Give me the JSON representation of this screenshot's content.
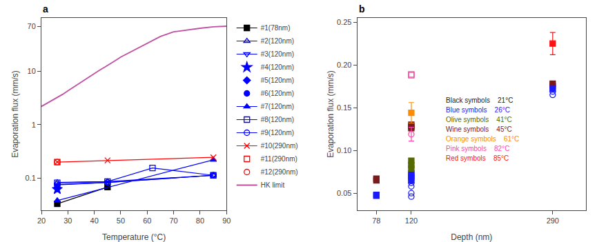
{
  "chart_data": [
    {
      "type": "line",
      "title": "a",
      "xlabel": "Temperature (°C)",
      "ylabel": "Evaporation flux (mm/s)",
      "log": "y",
      "grid": false,
      "legend": "right",
      "xlim": [
        20,
        90
      ],
      "xticks": [
        20,
        30,
        40,
        50,
        60,
        70,
        80,
        90
      ],
      "ylim": [
        0.025,
        100
      ],
      "yticks": [
        0.1,
        1,
        10,
        70
      ],
      "series": [
        {
          "name": "#1(78nm)",
          "color": "black",
          "marker": "square",
          "line_style": "solid",
          "x": [
            26,
            45
          ],
          "values": [
            0.033,
            0.068
          ]
        },
        {
          "name": "#2(120nm)",
          "color": "blue",
          "marker": "triangle-up-open",
          "line_style": "solid",
          "x": [
            26,
            45,
            85
          ],
          "values": [
            0.083,
            0.086,
            0.113
          ]
        },
        {
          "name": "#3(120nm)",
          "color": "blue",
          "marker": "triangle-down-open",
          "line_style": "solid",
          "x": [
            26,
            45,
            85
          ],
          "values": [
            0.075,
            0.083,
            0.113
          ]
        },
        {
          "name": "#4(120nm)",
          "color": "blue",
          "marker": "star",
          "line_style": "none",
          "x": [
            26
          ],
          "values": [
            0.062
          ]
        },
        {
          "name": "#5(120nm)",
          "color": "blue",
          "marker": "diamond",
          "line_style": "none",
          "x": [
            26
          ],
          "values": [
            0.065
          ]
        },
        {
          "name": "#6(120nm)",
          "color": "blue",
          "marker": "circle",
          "line_style": "none",
          "x": [
            26
          ],
          "values": [
            0.07
          ]
        },
        {
          "name": "#7(120nm)",
          "color": "blue",
          "marker": "triangle-up",
          "line_style": "solid",
          "x": [
            26,
            85
          ],
          "values": [
            0.038,
            0.22
          ]
        },
        {
          "name": "#8(120nm)",
          "color": "blue",
          "marker": "square-open",
          "line_style": "solid",
          "x": [
            26,
            45,
            62,
            85
          ],
          "values": [
            0.082,
            0.086,
            0.155,
            0.113
          ]
        },
        {
          "name": "#9(120nm)",
          "color": "blue",
          "marker": "circle-open",
          "line_style": "solid",
          "x": [
            26,
            45,
            85
          ],
          "values": [
            0.076,
            0.083,
            0.113
          ]
        },
        {
          "name": "#10(290nm)",
          "color": "red",
          "marker": "x-thin-open",
          "line_style": "solid",
          "x": [
            26,
            45,
            85
          ],
          "values": [
            0.2,
            0.215,
            0.245
          ]
        },
        {
          "name": "#11(290nm)",
          "color": "red",
          "marker": "square-open",
          "line_style": "none",
          "x": [
            26
          ],
          "values": [
            0.2
          ]
        },
        {
          "name": "#12(290nm)",
          "color": "red",
          "marker": "circle-open",
          "line_style": "none",
          "x": [
            26
          ],
          "values": [
            0.2
          ]
        },
        {
          "name": "HK limit",
          "color": "#C050A0",
          "marker": "none",
          "line_style": "solid",
          "x": [
            20,
            22,
            24,
            26,
            28,
            30,
            32,
            34,
            36,
            38,
            40,
            42,
            44,
            46,
            48,
            50,
            55,
            60,
            65,
            70,
            75,
            80,
            85,
            88,
            90
          ],
          "values": [
            2.2,
            2.5,
            2.8,
            3.2,
            3.7,
            4.3,
            5.0,
            5.8,
            6.7,
            7.8,
            9.0,
            10.5,
            12.0,
            14.0,
            16.0,
            18.5,
            25.0,
            34.0,
            45.0,
            55.0,
            60.0,
            64.0,
            68.0,
            69.5,
            70.0
          ]
        }
      ]
    },
    {
      "type": "scatter",
      "title": "b",
      "xlabel": "Depth (nm)",
      "ylabel": "Evaporation flux (mm/s)",
      "grid": false,
      "xlim": [
        55,
        330
      ],
      "xticks": [
        78,
        120,
        290
      ],
      "ylim": [
        0.03,
        0.255
      ],
      "yticks": [
        0.05,
        {
          "value": 0.1,
          "label": "0.10"
        },
        0.15,
        {
          "value": 0.2,
          "label": "0.20"
        },
        0.25
      ],
      "series": [
        {
          "color": "#7b1a1a",
          "marker": "square",
          "line_style": "none",
          "x": [
            78,
            78,
            120,
            120,
            120,
            290,
            290
          ],
          "values": [
            0.067,
            0.065,
            0.13,
            0.128,
            0.126,
            0.178,
            0.175
          ]
        },
        {
          "color": "#1a1aff",
          "marker": "square",
          "line_style": "none",
          "x": [
            78,
            78,
            120,
            120,
            120,
            120,
            290
          ],
          "values": [
            0.048,
            0.047,
            0.073,
            0.071,
            0.068,
            0.065,
            0.172
          ]
        },
        {
          "color": "#ff44aa",
          "marker": "square-open",
          "line_style": "none",
          "x": [
            120,
            120
          ],
          "values": [
            0.189,
            0.188
          ]
        },
        {
          "color": "#ff8c00",
          "marker": "square",
          "line_style": "none",
          "x": [
            120
          ],
          "values": [
            0.144
          ],
          "yerr": [
            0.012
          ]
        },
        {
          "color": "#ff44aa",
          "marker": "circle-open",
          "line_style": "none",
          "x": [
            120
          ],
          "values": [
            0.119
          ],
          "yerr": [
            0.008
          ]
        },
        {
          "color": "#556b00",
          "marker": "square",
          "line_style": "none",
          "x": [
            120,
            120,
            120
          ],
          "values": [
            0.088,
            0.083,
            0.079
          ]
        },
        {
          "color": "#1a1aff",
          "marker": "circle-open",
          "line_style": "none",
          "x": [
            120,
            120,
            120,
            120,
            290,
            290
          ],
          "values": [
            0.062,
            0.058,
            0.05,
            0.046,
            0.169,
            0.165
          ]
        },
        {
          "color": "#ff1111",
          "marker": "square",
          "line_style": "none",
          "x": [
            290
          ],
          "values": [
            0.225
          ],
          "yerr": [
            0.013
          ]
        }
      ],
      "annotations": [
        {
          "text": "Black symbols    21°C",
          "color": "#1a1a1a"
        },
        {
          "text": "Blue symbols    26°C",
          "color": "#1a1aff"
        },
        {
          "text": "Olive symbols    41°C",
          "color": "#556b00"
        },
        {
          "text": "Wine symbols    45°C",
          "color": "#7b1a1a"
        },
        {
          "text": "Orange symbols    61°C",
          "color": "#ff8c00"
        },
        {
          "text": "Pink symbols    82°C",
          "color": "#ff44aa"
        },
        {
          "text": "Red symbols    85°C",
          "color": "#ff1111"
        }
      ]
    }
  ]
}
